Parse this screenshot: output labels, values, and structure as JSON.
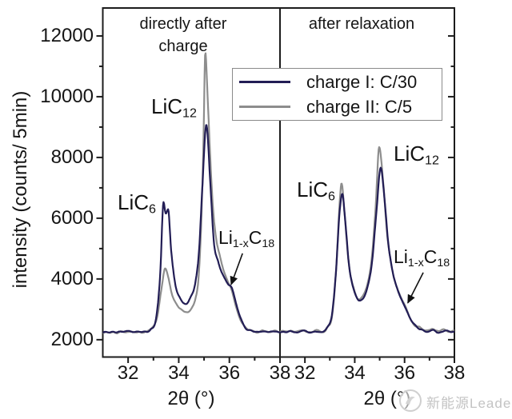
{
  "watermark": {
    "text": "新能源Leader",
    "logo": "circle-badge-icon"
  },
  "chart_data": {
    "type": "line",
    "title": "",
    "ylabel": "intensity (counts/ 5min)",
    "xlabel": "2θ (°)",
    "ylim": [
      1430,
      12920
    ],
    "xlim": [
      31,
      38
    ],
    "yticks": [
      2000,
      4000,
      6000,
      8000,
      10000,
      12000
    ],
    "yticks_minor": [
      3000,
      5000,
      7000,
      9000,
      11000
    ],
    "xticks": [
      32,
      34,
      36,
      38
    ],
    "xticks_minor_left": [
      33,
      35,
      37
    ],
    "xticks_minor_right": [
      31,
      33,
      35,
      37
    ],
    "grid": false,
    "frame_color": "#1c1c1c",
    "legend": {
      "position": "top-center-overlapping-both-panels",
      "entries": [
        {
          "label": "charge I: C/30",
          "color": "#221d55"
        },
        {
          "label": "charge II: C/5",
          "color": "#8d8d8d"
        }
      ]
    },
    "peak_annotations": {
      "lic6": {
        "base": "LiC",
        "sub": "6"
      },
      "lic12": {
        "base": "LiC",
        "sub": "12"
      },
      "li1xc18": {
        "li": "Li",
        "sub1": "1-x",
        "c": "C",
        "sub2": "18"
      }
    },
    "panels": [
      {
        "title": "directly after charge",
        "annotation_arrow": {
          "from": [
            36.52,
            4840
          ],
          "to": [
            36.07,
            3815
          ]
        },
        "series": [
          {
            "name": "charge II: C/5",
            "color": "#8d8d8d",
            "noise": 55,
            "seed": 13,
            "points": [
              [
                31.0,
                2235
              ],
              [
                31.25,
                2265
              ],
              [
                31.5,
                2225
              ],
              [
                31.75,
                2270
              ],
              [
                32.0,
                2235
              ],
              [
                32.25,
                2265
              ],
              [
                32.5,
                2245
              ],
              [
                32.72,
                2290
              ],
              [
                32.95,
                2380
              ],
              [
                33.15,
                2750
              ],
              [
                33.32,
                3700
              ],
              [
                33.46,
                4340
              ],
              [
                33.58,
                4050
              ],
              [
                33.74,
                3460
              ],
              [
                33.95,
                3110
              ],
              [
                34.15,
                2980
              ],
              [
                34.35,
                2945
              ],
              [
                34.52,
                3060
              ],
              [
                34.66,
                3350
              ],
              [
                34.78,
                4000
              ],
              [
                34.88,
                5600
              ],
              [
                34.97,
                8200
              ],
              [
                35.05,
                11470
              ],
              [
                35.14,
                10000
              ],
              [
                35.24,
                8100
              ],
              [
                35.35,
                6400
              ],
              [
                35.48,
                5300
              ],
              [
                35.62,
                4750
              ],
              [
                35.78,
                4250
              ],
              [
                35.94,
                3900
              ],
              [
                36.08,
                3620
              ],
              [
                36.26,
                3080
              ],
              [
                36.45,
                2600
              ],
              [
                36.64,
                2400
              ],
              [
                36.86,
                2320
              ],
              [
                37.08,
                2270
              ],
              [
                37.3,
                2300
              ],
              [
                37.52,
                2260
              ],
              [
                37.76,
                2295
              ],
              [
                38.0,
                2265
              ]
            ]
          },
          {
            "name": "charge I: C/30",
            "color": "#221d55",
            "noise": 45,
            "seed": 7,
            "points": [
              [
                31.0,
                2255
              ],
              [
                31.2,
                2230
              ],
              [
                31.45,
                2275
              ],
              [
                31.7,
                2240
              ],
              [
                31.95,
                2280
              ],
              [
                32.2,
                2245
              ],
              [
                32.45,
                2270
              ],
              [
                32.7,
                2255
              ],
              [
                32.9,
                2345
              ],
              [
                33.1,
                2700
              ],
              [
                33.27,
                4200
              ],
              [
                33.4,
                6530
              ],
              [
                33.49,
                6150
              ],
              [
                33.58,
                6280
              ],
              [
                33.7,
                4950
              ],
              [
                33.88,
                3760
              ],
              [
                34.08,
                3340
              ],
              [
                34.28,
                3160
              ],
              [
                34.48,
                3420
              ],
              [
                34.66,
                3900
              ],
              [
                34.8,
                4900
              ],
              [
                34.93,
                7000
              ],
              [
                35.09,
                9105
              ],
              [
                35.25,
                7100
              ],
              [
                35.39,
                5200
              ],
              [
                35.56,
                4550
              ],
              [
                35.76,
                4100
              ],
              [
                35.95,
                3820
              ],
              [
                36.1,
                3680
              ],
              [
                36.28,
                3150
              ],
              [
                36.47,
                2650
              ],
              [
                36.66,
                2380
              ],
              [
                36.88,
                2290
              ],
              [
                37.1,
                2255
              ],
              [
                37.32,
                2285
              ],
              [
                37.55,
                2250
              ],
              [
                37.78,
                2280
              ],
              [
                38.0,
                2260
              ]
            ]
          }
        ]
      },
      {
        "title": "after relaxation",
        "annotation_arrow": {
          "from": [
            36.75,
            4210
          ],
          "to": [
            36.13,
            3210
          ]
        },
        "series": [
          {
            "name": "charge II: C/5",
            "color": "#8d8d8d",
            "noise": 55,
            "seed": 29,
            "points": [
              [
                31.0,
                2285
              ],
              [
                31.24,
                2255
              ],
              [
                31.48,
                2300
              ],
              [
                31.72,
                2260
              ],
              [
                31.96,
                2300
              ],
              [
                32.2,
                2265
              ],
              [
                32.44,
                2295
              ],
              [
                32.68,
                2270
              ],
              [
                32.9,
                2380
              ],
              [
                33.1,
                2850
              ],
              [
                33.26,
                4400
              ],
              [
                33.38,
                6300
              ],
              [
                33.47,
                7160
              ],
              [
                33.6,
                6100
              ],
              [
                33.76,
                4500
              ],
              [
                33.96,
                3650
              ],
              [
                34.16,
                3330
              ],
              [
                34.36,
                3450
              ],
              [
                34.53,
                3900
              ],
              [
                34.68,
                4700
              ],
              [
                34.84,
                6400
              ],
              [
                34.98,
                8315
              ],
              [
                35.14,
                7200
              ],
              [
                35.3,
                5500
              ],
              [
                35.48,
                4400
              ],
              [
                35.66,
                3800
              ],
              [
                35.86,
                3380
              ],
              [
                36.06,
                3040
              ],
              [
                36.26,
                2660
              ],
              [
                36.46,
                2450
              ],
              [
                36.68,
                2360
              ],
              [
                36.9,
                2300
              ],
              [
                37.12,
                2330
              ],
              [
                37.34,
                2285
              ],
              [
                37.56,
                2320
              ],
              [
                37.78,
                2285
              ],
              [
                38.0,
                2300
              ]
            ]
          },
          {
            "name": "charge I: C/30",
            "color": "#221d55",
            "noise": 45,
            "seed": 3,
            "points": [
              [
                31.0,
                2260
              ],
              [
                31.22,
                2230
              ],
              [
                31.46,
                2280
              ],
              [
                31.7,
                2240
              ],
              [
                31.94,
                2285
              ],
              [
                32.18,
                2250
              ],
              [
                32.42,
                2275
              ],
              [
                32.66,
                2255
              ],
              [
                32.88,
                2360
              ],
              [
                33.08,
                2800
              ],
              [
                33.25,
                4300
              ],
              [
                33.38,
                6100
              ],
              [
                33.5,
                6815
              ],
              [
                33.62,
                5900
              ],
              [
                33.78,
                4400
              ],
              [
                33.98,
                3600
              ],
              [
                34.18,
                3300
              ],
              [
                34.38,
                3420
              ],
              [
                34.55,
                3850
              ],
              [
                34.7,
                4600
              ],
              [
                34.86,
                6100
              ],
              [
                35.04,
                7657
              ],
              [
                35.2,
                6600
              ],
              [
                35.35,
                5150
              ],
              [
                35.52,
                4250
              ],
              [
                35.7,
                3700
              ],
              [
                35.9,
                3280
              ],
              [
                36.08,
                2980
              ],
              [
                36.28,
                2620
              ],
              [
                36.48,
                2420
              ],
              [
                36.7,
                2320
              ],
              [
                36.92,
                2270
              ],
              [
                37.14,
                2295
              ],
              [
                37.36,
                2255
              ],
              [
                37.58,
                2285
              ],
              [
                37.8,
                2255
              ],
              [
                38.0,
                2270
              ]
            ]
          }
        ]
      }
    ]
  }
}
